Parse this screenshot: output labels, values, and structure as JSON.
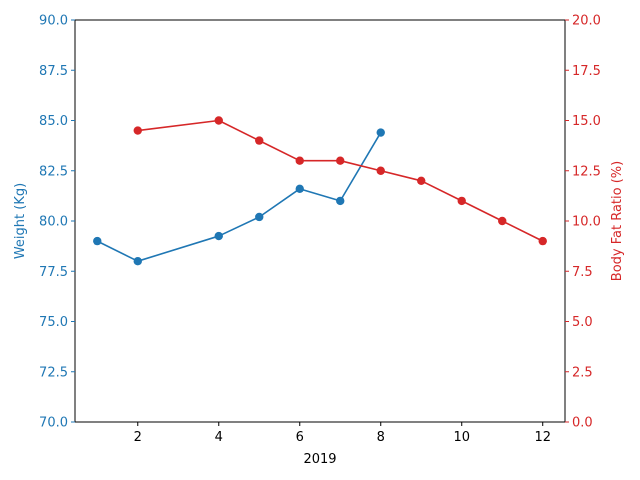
{
  "chart_data": {
    "type": "line",
    "xlabel": "2019",
    "x_ticks": [
      2,
      4,
      6,
      8,
      10,
      12
    ],
    "xlim": [
      0.45,
      12.55
    ],
    "y_left": {
      "label": "Weight (Kg)",
      "ylim": [
        70.0,
        90.0
      ],
      "ticks": [
        "70.0",
        "72.5",
        "75.0",
        "77.5",
        "80.0",
        "82.5",
        "85.0",
        "87.5",
        "90.0"
      ],
      "color": "#1f77b4"
    },
    "y_right": {
      "label": "Body Fat Ratio (%)",
      "ylim": [
        0.0,
        20.0
      ],
      "ticks": [
        "0.0",
        "2.5",
        "5.0",
        "7.5",
        "10.0",
        "12.5",
        "15.0",
        "17.5",
        "20.0"
      ],
      "color": "#d62728"
    },
    "series": [
      {
        "axis": "left",
        "color": "#1f77b4",
        "x": [
          1,
          2,
          4,
          5,
          6,
          7,
          8
        ],
        "y": [
          79.0,
          78.0,
          79.25,
          80.2,
          81.6,
          81.0,
          84.4
        ]
      },
      {
        "axis": "right",
        "color": "#d62728",
        "x": [
          2,
          4,
          5,
          6,
          7,
          8,
          9,
          10,
          11,
          12
        ],
        "y": [
          14.5,
          15.0,
          14.0,
          13.0,
          13.0,
          12.5,
          12.0,
          11.0,
          10.0,
          9.0
        ]
      }
    ],
    "grid": false,
    "legend": "none"
  }
}
